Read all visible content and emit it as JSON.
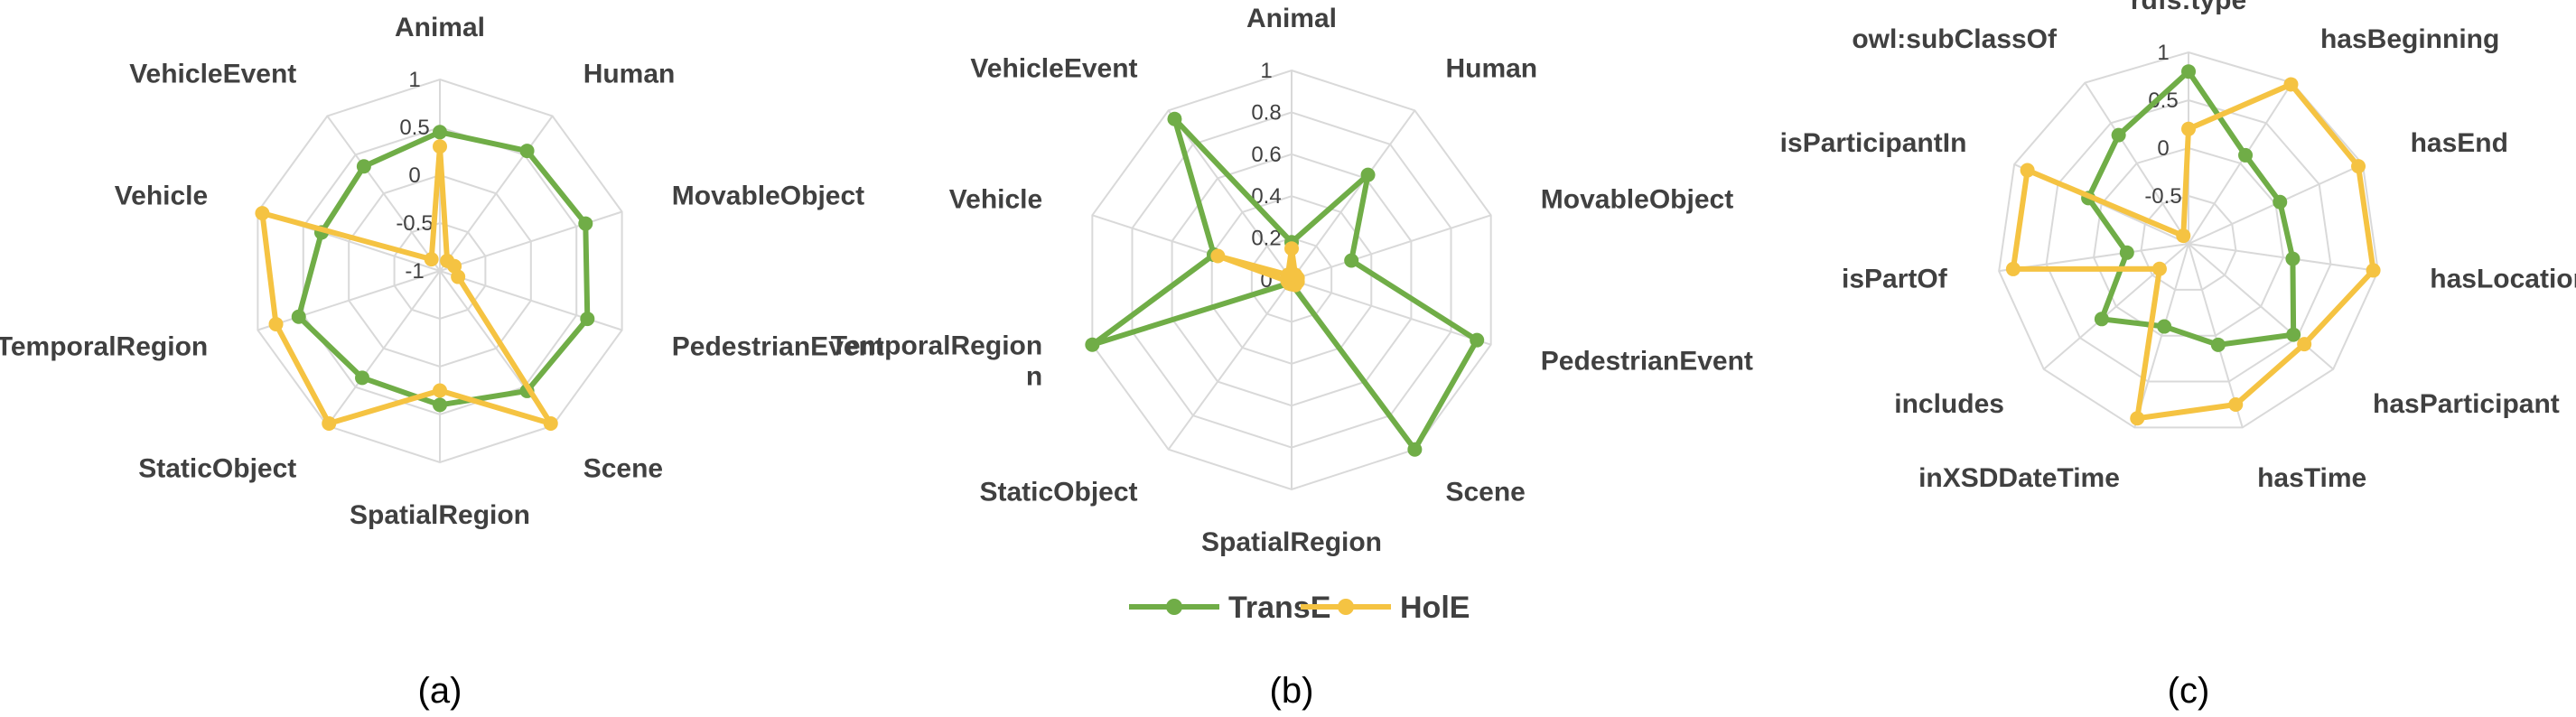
{
  "colors": {
    "TransE": "#70AD47",
    "HolE": "#F5C342",
    "grid": "#D9D9D9",
    "text": "#404040"
  },
  "legend": {
    "position": "bottom-center",
    "items": [
      "TransE",
      "HolE"
    ]
  },
  "panel_labels": [
    "(a)",
    "(b)",
    "(c)"
  ],
  "chart_data": [
    {
      "type": "radar",
      "panel": "(a)",
      "categories": [
        "Animal",
        "Human",
        "MovableObject",
        "PedestrianEvent",
        "Scene",
        "SpatialRegion",
        "StaticObject",
        "TemporalRegion",
        "Vehicle",
        "VehicleEvent"
      ],
      "category_display": [
        [
          "Animal"
        ],
        [
          "Human"
        ],
        [
          "MovableObject"
        ],
        [
          "PedestrianEvent"
        ],
        [
          "Scene"
        ],
        [
          "SpatialRegion"
        ],
        [
          "StaticObject"
        ],
        [
          "TemporalRegion"
        ],
        [
          "Vehicle"
        ],
        [
          "VehicleEvent"
        ]
      ],
      "rlim": [
        -1,
        1
      ],
      "ticks": [
        -1,
        -0.5,
        0,
        0.5,
        1
      ],
      "tick_labels": [
        "-1",
        "-0.5",
        "0",
        "0.5",
        "1"
      ],
      "grid": true,
      "series": [
        {
          "name": "TransE",
          "values": [
            0.45,
            0.55,
            0.6,
            0.62,
            0.55,
            0.4,
            0.38,
            0.55,
            0.3,
            0.35
          ]
        },
        {
          "name": "HolE",
          "values": [
            0.3,
            -0.87,
            -0.84,
            -0.8,
            0.97,
            0.25,
            0.97,
            0.8,
            0.95,
            -0.85
          ]
        }
      ]
    },
    {
      "type": "radar",
      "panel": "(b)",
      "categories": [
        "Animal",
        "Human",
        "MovableObject",
        "PedestrianEvent",
        "Scene",
        "SpatialRegion",
        "StaticObject",
        "TemporalRegion",
        "Vehicle",
        "VehicleEvent"
      ],
      "category_display": [
        [
          "Animal"
        ],
        [
          "Human"
        ],
        [
          "MovableObject"
        ],
        [
          "PedestrianEvent"
        ],
        [
          "Scene"
        ],
        [
          "SpatialRegion"
        ],
        [
          "StaticObject"
        ],
        [
          "TemporalRegion",
          "n"
        ],
        [
          "Vehicle"
        ],
        [
          "VehicleEvent"
        ]
      ],
      "rlim": [
        0,
        1
      ],
      "ticks": [
        0,
        0.2,
        0.4,
        0.6,
        0.8,
        1
      ],
      "tick_labels": [
        "0",
        "0.2",
        "0.4",
        "0.6",
        "0.8",
        "1"
      ],
      "grid": true,
      "series": [
        {
          "name": "TransE",
          "values": [
            0.18,
            0.62,
            0.3,
            0.93,
            1.0,
            0.02,
            0.02,
            1.0,
            0.39,
            0.95
          ]
        },
        {
          "name": "HolE",
          "values": [
            0.15,
            0.03,
            0.03,
            0.03,
            0.03,
            0.02,
            0.02,
            0.02,
            0.37,
            0.03
          ]
        }
      ]
    },
    {
      "type": "radar",
      "panel": "(c)",
      "categories": [
        "rdfs:type",
        "hasBeginning",
        "hasEnd",
        "hasLocation",
        "hasParticipant",
        "hasTime",
        "inXSDDateTime",
        "includes",
        "isPartOf",
        "isParticipantIn",
        "owl:subClassOf"
      ],
      "category_display": [
        [
          "rdfs:type"
        ],
        [
          "hasBeginning"
        ],
        [
          "hasEnd"
        ],
        [
          "hasLocation"
        ],
        [
          "hasParticipant"
        ],
        [
          "hasTime"
        ],
        [
          "inXSDDateTime"
        ],
        [
          "includes"
        ],
        [
          "isPartOf"
        ],
        [
          "isParticipantIn"
        ],
        [
          "owl:subClassOf"
        ]
      ],
      "rlim": [
        -1,
        1
      ],
      "ticks": [
        -1,
        -0.5,
        0,
        0.5,
        1
      ],
      "tick_labels": [
        "",
        "-0.5",
        "0",
        "0.5",
        "1"
      ],
      "grid": true,
      "series": [
        {
          "name": "TransE",
          "values": [
            0.8,
            0.1,
            0.05,
            0.1,
            0.45,
            0.1,
            -0.1,
            0.2,
            -0.35,
            0.15,
            0.35
          ]
        },
        {
          "name": "HolE",
          "values": [
            0.2,
            0.98,
            0.95,
            0.95,
            0.6,
            0.75,
            0.9,
            -0.6,
            0.85,
            0.85,
            -0.9
          ]
        }
      ]
    }
  ]
}
